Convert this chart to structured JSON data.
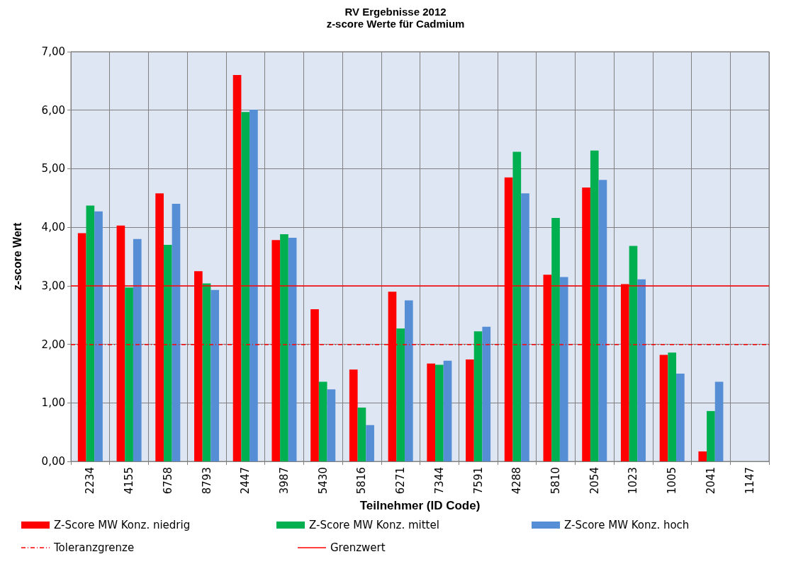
{
  "chart_data": {
    "type": "bar",
    "title": "RV Ergebnisse 2012",
    "subtitle": "z-score Werte für Cadmium",
    "xlabel": "Teilnehmer (ID Code)",
    "ylabel": "z-score Wert",
    "categories": [
      "2234",
      "4155",
      "6758",
      "8793",
      "2447",
      "3987",
      "5430",
      "5816",
      "6271",
      "7344",
      "7591",
      "4288",
      "5810",
      "2054",
      "1023",
      "1005",
      "2041",
      "1147"
    ],
    "series": [
      {
        "name": "Z-Score MW Konz. niedrig",
        "color": "#ff0000",
        "values": [
          3.9,
          4.03,
          4.58,
          3.25,
          6.6,
          3.78,
          2.6,
          1.57,
          2.9,
          1.67,
          1.74,
          4.85,
          3.19,
          4.68,
          3.03,
          1.82,
          0.17,
          null
        ]
      },
      {
        "name": "Z-Score MW Konz. mittel",
        "color": "#00b050",
        "values": [
          4.37,
          2.97,
          3.7,
          3.04,
          5.97,
          3.88,
          1.36,
          0.92,
          2.27,
          1.65,
          2.22,
          5.29,
          4.16,
          5.31,
          3.68,
          1.86,
          0.86,
          null
        ]
      },
      {
        "name": "Z-Score MW Konz. hoch",
        "color": "#558ed5",
        "values": [
          4.27,
          3.8,
          4.4,
          2.93,
          6.01,
          3.82,
          1.23,
          0.62,
          2.75,
          1.72,
          2.3,
          4.58,
          3.15,
          4.81,
          3.11,
          1.5,
          1.36,
          null
        ]
      }
    ],
    "ref_lines": [
      {
        "axis": "y",
        "value": 2,
        "label": "Toleranzgrenze",
        "color": "#ff0000",
        "line_style": "dashed"
      },
      {
        "axis": "y",
        "value": 3,
        "label": "Grenzwert",
        "color": "#ff0000",
        "line_style": "solid"
      }
    ],
    "ylim": [
      0,
      7
    ],
    "yticks": [
      {
        "value": 0,
        "label": "0,00"
      },
      {
        "value": 1,
        "label": "1,00"
      },
      {
        "value": 2,
        "label": "2,00"
      },
      {
        "value": 3,
        "label": "3,00"
      },
      {
        "value": 4,
        "label": "4,00"
      },
      {
        "value": 5,
        "label": "5,00"
      },
      {
        "value": 6,
        "label": "6,00"
      },
      {
        "value": 7,
        "label": "7,00"
      }
    ],
    "grid": true,
    "legend": "bottom"
  }
}
